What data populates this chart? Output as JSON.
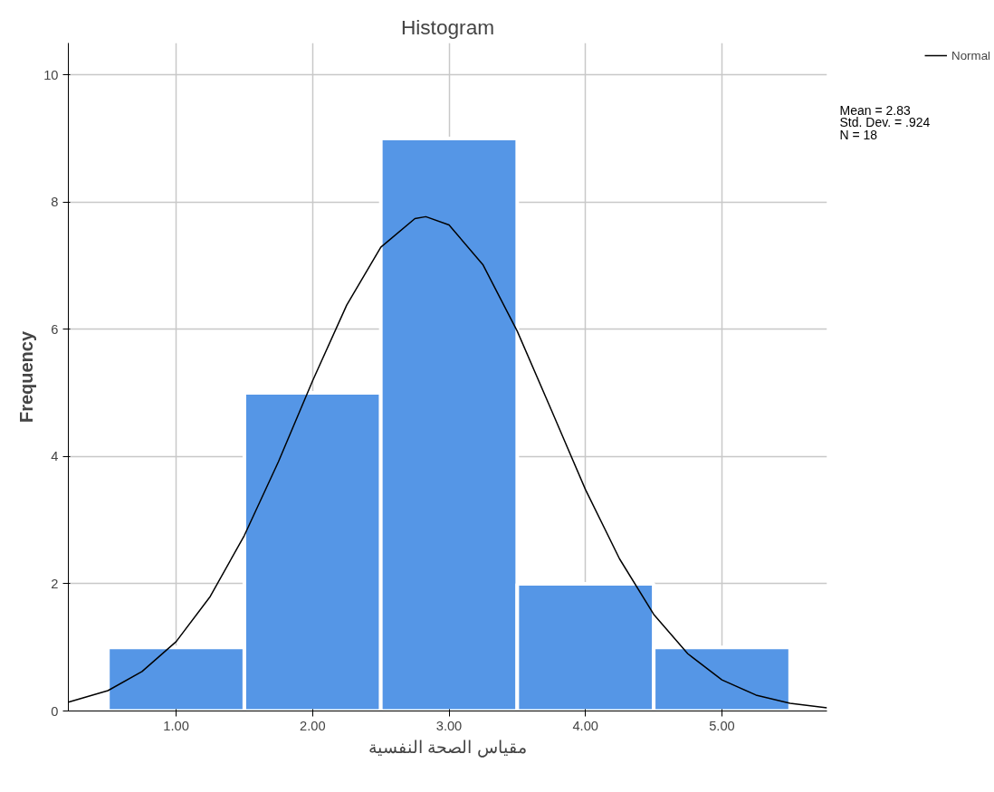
{
  "chart_data": {
    "type": "histogram",
    "title": "Histogram",
    "xlabel": "مقياس الصحة النفسية",
    "ylabel": "Frequency",
    "bins": [
      0.5,
      1.5,
      2.5,
      3.5,
      4.5,
      5.5
    ],
    "values": [
      1,
      5,
      9,
      2,
      1
    ],
    "color": "#5596e6",
    "series": [
      {
        "name": "Normal",
        "type": "line",
        "color": "#000000",
        "x": [
          0.21,
          0.5,
          0.75,
          1.0,
          1.25,
          1.5,
          1.75,
          2.0,
          2.25,
          2.5,
          2.75,
          2.83,
          3.0,
          3.25,
          3.5,
          3.75,
          4.0,
          4.25,
          4.5,
          4.75,
          5.0,
          5.25,
          5.5,
          5.77
        ],
        "values": [
          0.14,
          0.32,
          0.62,
          1.09,
          1.8,
          2.76,
          3.92,
          5.19,
          6.38,
          7.29,
          7.74,
          7.77,
          7.64,
          7.01,
          5.97,
          4.73,
          3.48,
          2.39,
          1.52,
          0.9,
          0.49,
          0.25,
          0.12,
          0.05
        ]
      }
    ],
    "xlim": [
      0.21,
      5.77
    ],
    "ylim": [
      0,
      10.5
    ],
    "xticks": [
      {
        "value": 1,
        "label": "1.00"
      },
      {
        "value": 2,
        "label": "2.00"
      },
      {
        "value": 3,
        "label": "3.00"
      },
      {
        "value": 4,
        "label": "4.00"
      },
      {
        "value": 5,
        "label": "5.00"
      }
    ],
    "yticks": [
      0,
      2,
      4,
      6,
      8,
      10
    ],
    "grid": true,
    "legend": "top right",
    "annotations": [
      "Mean = 2.83",
      "Std. Dev. = .924",
      "N = 18"
    ]
  }
}
